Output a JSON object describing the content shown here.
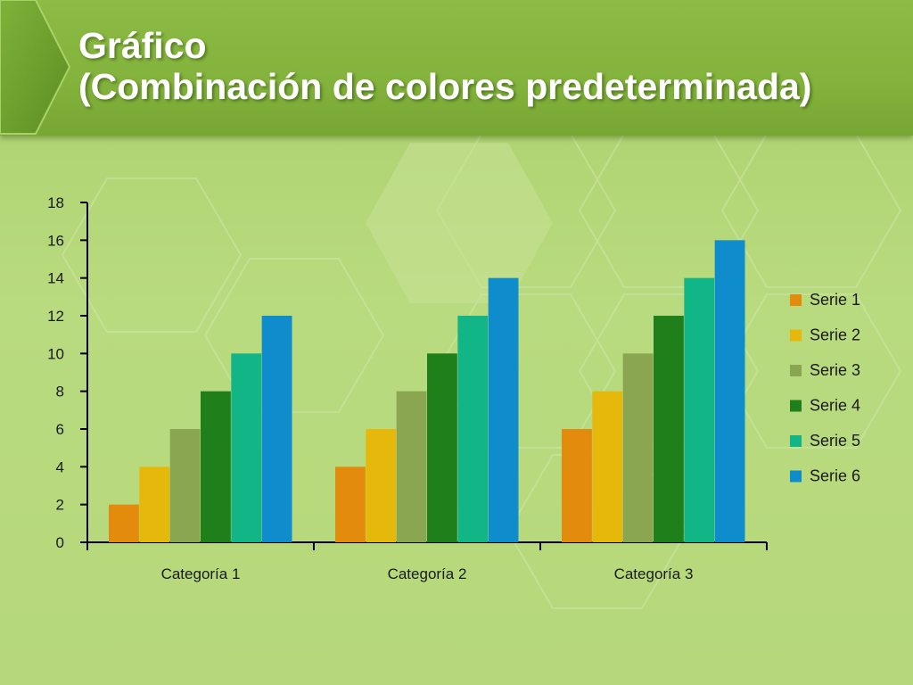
{
  "slide": {
    "title_line1": "Gráfico",
    "title_line2": "(Combinación de colores predeterminada)"
  },
  "chart_data": {
    "type": "bar",
    "title": "",
    "xlabel": "",
    "ylabel": "",
    "categories": [
      "Categoría 1",
      "Categoría 2",
      "Categoría 3"
    ],
    "ylim": [
      0,
      18
    ],
    "yticks": [
      0,
      2,
      4,
      6,
      8,
      10,
      12,
      14,
      16,
      18
    ],
    "grid": false,
    "legend_position": "right",
    "series": [
      {
        "name": "Serie 1",
        "color": "#e38b0c",
        "values": [
          2,
          4,
          6
        ]
      },
      {
        "name": "Serie 2",
        "color": "#e5b80b",
        "values": [
          4,
          6,
          8
        ]
      },
      {
        "name": "Serie 3",
        "color": "#8aa651",
        "values": [
          6,
          8,
          10
        ]
      },
      {
        "name": "Serie 4",
        "color": "#1f7f1a",
        "values": [
          8,
          10,
          12
        ]
      },
      {
        "name": "Serie 5",
        "color": "#12b586",
        "values": [
          10,
          12,
          14
        ]
      },
      {
        "name": "Serie 6",
        "color": "#0f8ccc",
        "values": [
          12,
          14,
          16
        ]
      }
    ]
  }
}
